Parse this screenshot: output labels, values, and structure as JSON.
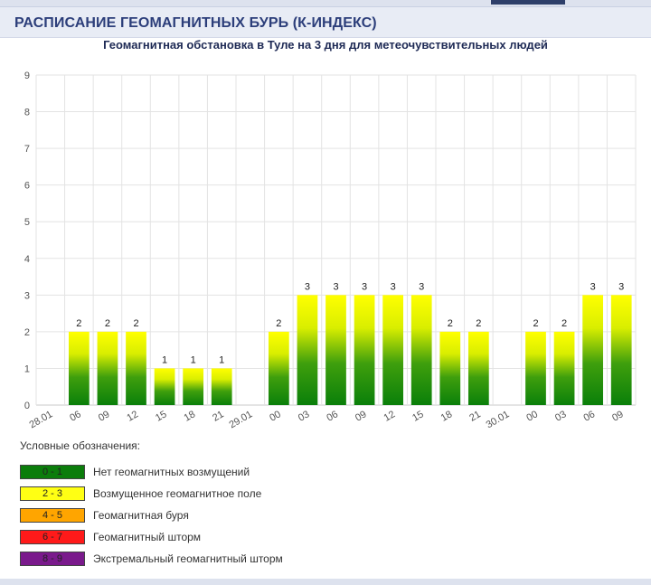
{
  "header": {
    "title": "РАСПИСАНИЕ ГЕОМАГНИТНЫХ БУРЬ (К-ИНДЕКС)"
  },
  "chart_data": {
    "type": "bar",
    "title": "Геомагнитная обстановка в Туле на 3 дня для метеочувствительных людей",
    "xlabel": "",
    "ylabel": "",
    "ylim": [
      0,
      9
    ],
    "yticks": [
      "0",
      "1",
      "2",
      "3",
      "4",
      "5",
      "6",
      "7",
      "8",
      "9"
    ],
    "grid": true,
    "categories": [
      "28.01",
      "06",
      "09",
      "12",
      "15",
      "18",
      "21",
      "29.01",
      "00",
      "03",
      "06",
      "09",
      "12",
      "15",
      "18",
      "21",
      "30.01",
      "00",
      "03",
      "06",
      "09"
    ],
    "values": [
      null,
      2,
      2,
      2,
      1,
      1,
      1,
      null,
      2,
      3,
      3,
      3,
      3,
      3,
      2,
      2,
      null,
      2,
      2,
      3,
      3
    ],
    "colors": {
      "bar_top": "#ffff00",
      "bar_bottom": "#0a7f0a",
      "grid": "#e3e3e3"
    }
  },
  "legend": {
    "title": "Условные обозначения:",
    "items": [
      {
        "range": "0 - 1",
        "label": "Нет геомагнитных возмущений",
        "color": "#0b7d0b"
      },
      {
        "range": "2 - 3",
        "label": "Возмущенное геомагнитное поле",
        "color": "#ffff14"
      },
      {
        "range": "4 - 5",
        "label": "Геомагнитная буря",
        "color": "#ffa500"
      },
      {
        "range": "6 - 7",
        "label": "Геомагнитный шторм",
        "color": "#ff1a1a"
      },
      {
        "range": "8 - 9",
        "label": "Экстремальный геомагнитный шторм",
        "color": "#7a1a8c"
      }
    ]
  }
}
